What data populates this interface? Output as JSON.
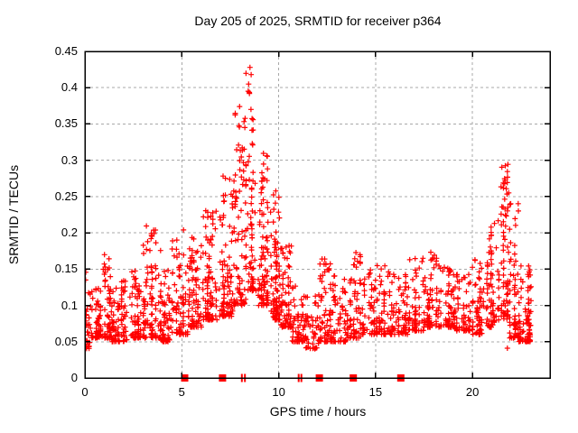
{
  "window": {
    "background": "#ffffff"
  },
  "chart_data": {
    "type": "scatter",
    "title": "Day 205 of 2025, SRMTID for receiver p364",
    "xlabel": "GPS time / hours",
    "ylabel": "SRMTID / TECUs",
    "xlim": [
      0,
      24
    ],
    "ylim": [
      0,
      0.45
    ],
    "xticks": {
      "values": [
        0,
        5,
        10,
        15,
        20
      ],
      "labels": [
        "0",
        "5",
        "10",
        "15",
        "20"
      ]
    },
    "yticks": {
      "values": [
        0,
        0.05,
        0.1,
        0.15,
        0.2,
        0.25,
        0.3,
        0.35,
        0.4,
        0.45
      ],
      "labels": [
        "0",
        "0.05",
        "0.1",
        "0.15",
        "0.2",
        "0.25",
        "0.3",
        "0.35",
        "0.4",
        "0.45"
      ]
    },
    "grid": {
      "show": true,
      "color": "#a8a8a8",
      "dash": "3,3"
    },
    "frame_color": "#000000",
    "marker": {
      "shape": "plus",
      "color": "#ff0000",
      "size": 7
    },
    "seed": 7,
    "scatter_segments": [
      {
        "x0": 0.0,
        "x1": 0.3,
        "n": 32,
        "ymin": 0.04,
        "ymax": 0.155
      },
      {
        "x0": 0.3,
        "x1": 0.9,
        "n": 55,
        "ymin": 0.055,
        "ymax": 0.13
      },
      {
        "x0": 0.9,
        "x1": 1.4,
        "n": 55,
        "ymin": 0.055,
        "ymax": 0.17
      },
      {
        "x0": 1.4,
        "x1": 2.3,
        "n": 80,
        "ymin": 0.05,
        "ymax": 0.135
      },
      {
        "x0": 2.3,
        "x1": 2.9,
        "n": 60,
        "ymin": 0.055,
        "ymax": 0.15
      },
      {
        "x0": 2.9,
        "x1": 3.9,
        "n": 95,
        "ymin": 0.055,
        "ymax": 0.21
      },
      {
        "x0": 3.9,
        "x1": 4.5,
        "n": 55,
        "ymin": 0.05,
        "ymax": 0.155
      },
      {
        "x0": 4.5,
        "x1": 5.3,
        "n": 75,
        "ymin": 0.06,
        "ymax": 0.22
      },
      {
        "x0": 5.3,
        "x1": 6.1,
        "n": 80,
        "ymin": 0.07,
        "ymax": 0.2
      },
      {
        "x0": 6.1,
        "x1": 6.9,
        "n": 90,
        "ymin": 0.08,
        "ymax": 0.235
      },
      {
        "x0": 6.9,
        "x1": 7.7,
        "n": 95,
        "ymin": 0.085,
        "ymax": 0.285
      },
      {
        "x0": 7.7,
        "x1": 8.3,
        "n": 80,
        "ymin": 0.1,
        "ymax": 0.385,
        "k": 1.8
      },
      {
        "x0": 8.3,
        "x1": 8.8,
        "n": 70,
        "ymin": 0.12,
        "ymax": 0.43,
        "k": 1.7
      },
      {
        "x0": 8.8,
        "x1": 9.5,
        "n": 90,
        "ymin": 0.1,
        "ymax": 0.315,
        "k": 1.9
      },
      {
        "x0": 9.5,
        "x1": 10.1,
        "n": 90,
        "ymin": 0.08,
        "ymax": 0.26
      },
      {
        "x0": 10.1,
        "x1": 10.7,
        "n": 75,
        "ymin": 0.07,
        "ymax": 0.185
      },
      {
        "x0": 10.7,
        "x1": 11.3,
        "n": 52,
        "ymin": 0.05,
        "ymax": 0.13
      },
      {
        "x0": 11.3,
        "x1": 12.1,
        "n": 52,
        "ymin": 0.04,
        "ymax": 0.115
      },
      {
        "x0": 12.1,
        "x1": 12.7,
        "n": 58,
        "ymin": 0.05,
        "ymax": 0.165
      },
      {
        "x0": 12.7,
        "x1": 13.5,
        "n": 62,
        "ymin": 0.05,
        "ymax": 0.145
      },
      {
        "x0": 13.5,
        "x1": 14.3,
        "n": 68,
        "ymin": 0.055,
        "ymax": 0.175
      },
      {
        "x0": 14.3,
        "x1": 15.1,
        "n": 62,
        "ymin": 0.06,
        "ymax": 0.155
      },
      {
        "x0": 15.1,
        "x1": 15.9,
        "n": 62,
        "ymin": 0.06,
        "ymax": 0.165
      },
      {
        "x0": 15.9,
        "x1": 16.7,
        "n": 62,
        "ymin": 0.06,
        "ymax": 0.145
      },
      {
        "x0": 16.7,
        "x1": 17.5,
        "n": 64,
        "ymin": 0.065,
        "ymax": 0.165
      },
      {
        "x0": 17.5,
        "x1": 18.3,
        "n": 66,
        "ymin": 0.07,
        "ymax": 0.175
      },
      {
        "x0": 18.3,
        "x1": 19.1,
        "n": 64,
        "ymin": 0.07,
        "ymax": 0.155
      },
      {
        "x0": 19.1,
        "x1": 19.9,
        "n": 60,
        "ymin": 0.065,
        "ymax": 0.145
      },
      {
        "x0": 19.9,
        "x1": 20.7,
        "n": 62,
        "ymin": 0.06,
        "ymax": 0.165
      },
      {
        "x0": 20.7,
        "x1": 21.3,
        "n": 62,
        "ymin": 0.07,
        "ymax": 0.215
      },
      {
        "x0": 21.3,
        "x1": 21.9,
        "n": 80,
        "ymin": 0.08,
        "ymax": 0.295,
        "k": 1.5
      },
      {
        "x0": 21.9,
        "x1": 22.4,
        "n": 62,
        "ymin": 0.055,
        "ymax": 0.25,
        "k": 1.9
      },
      {
        "x0": 22.4,
        "x1": 23.05,
        "n": 85,
        "ymin": 0.05,
        "ymax": 0.155
      }
    ],
    "extra_points": [
      [
        21.8,
        0.041
      ],
      [
        8.52,
        0.428
      ],
      [
        8.58,
        0.418
      ],
      [
        8.45,
        0.405
      ]
    ],
    "baseline_markers": {
      "color": "#ff0000",
      "squares_x": [
        5.15,
        7.1,
        12.1,
        13.85,
        16.3
      ],
      "thin_marks_x": [
        8.1,
        8.26,
        11.03,
        11.17
      ]
    }
  }
}
